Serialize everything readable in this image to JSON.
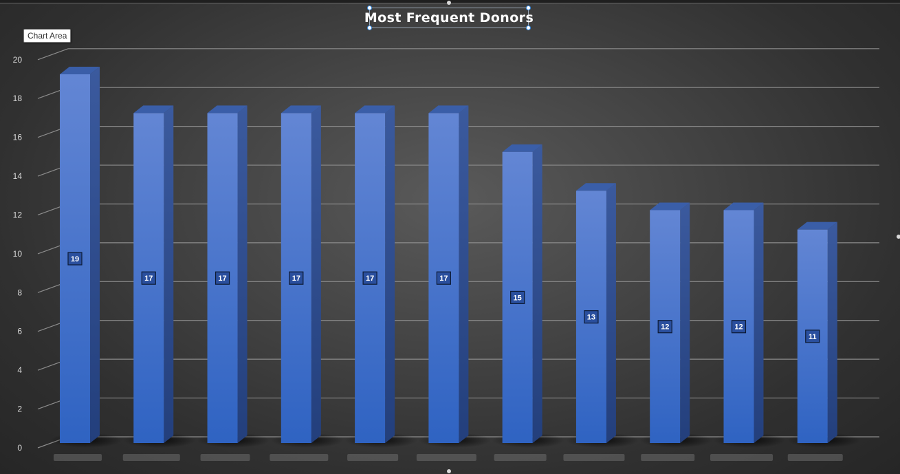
{
  "tooltip": {
    "text": "Chart Area"
  },
  "chart_data": {
    "type": "bar",
    "title": "Most Frequent Donors",
    "xlabel": "",
    "ylabel": "",
    "categories": [
      "",
      "",
      "",
      "",
      "",
      "",
      "",
      "",
      "",
      "",
      ""
    ],
    "values": [
      19,
      17,
      17,
      17,
      17,
      17,
      15,
      13,
      12,
      12,
      11
    ],
    "ylim": [
      0,
      20
    ],
    "yticks": [
      0,
      2,
      4,
      6,
      8,
      10,
      12,
      14,
      16,
      18,
      20
    ],
    "data_labels": true,
    "grid": true,
    "style": "3d-column",
    "colors": {
      "bar_front": "#4472c4",
      "bar_side": "#2f5597",
      "bar_top": "#3a5ea8",
      "gridline": "#8c8c8c",
      "tick_label": "#d9d9d9"
    }
  }
}
